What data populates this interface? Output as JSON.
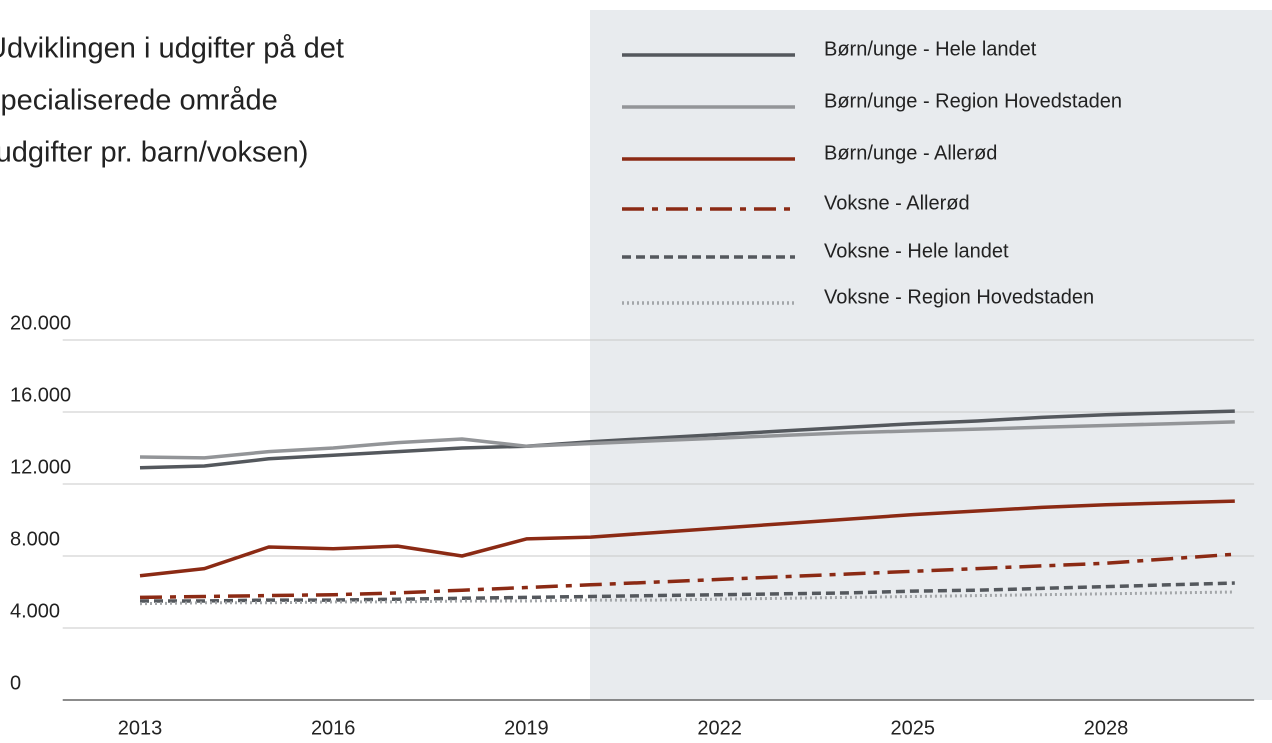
{
  "chart_data": {
    "type": "line",
    "title": [
      "Udviklingen i udgifter på det",
      "specialiserede område",
      "(udgifter pr. barn/voksen)"
    ],
    "x": [
      2013,
      2014,
      2015,
      2016,
      2017,
      2018,
      2019,
      2020,
      2021,
      2022,
      2023,
      2024,
      2025,
      2026,
      2027,
      2028,
      2029,
      2030
    ],
    "xlim": [
      2011.8,
      2030.3
    ],
    "xticks": [
      2013,
      2016,
      2019,
      2022,
      2025,
      2028
    ],
    "ylim": [
      0,
      20000
    ],
    "yticks": [
      0,
      {
        "value": 4000,
        "label": "4.000"
      },
      {
        "value": 8000,
        "label": "8.000"
      },
      {
        "value": 12000,
        "label": "12.000"
      },
      {
        "value": 16000,
        "label": "16.000"
      },
      {
        "value": 20000,
        "label": "20.000"
      }
    ],
    "grid": true,
    "series": [
      {
        "name": "Børn/unge - Hele landet",
        "color": "#54585d",
        "dash": "solid",
        "values": [
          12900,
          13000,
          13400,
          13600,
          13800,
          14000,
          14100,
          14350,
          14550,
          14750,
          14950,
          15150,
          15350,
          15500,
          15700,
          15850,
          15950,
          16050
        ]
      },
      {
        "name": "Børn/unge - Region Hovedstaden",
        "color": "#939598",
        "dash": "solid",
        "values": [
          13500,
          13450,
          13800,
          14000,
          14300,
          14500,
          14100,
          14250,
          14400,
          14550,
          14700,
          14850,
          14950,
          15050,
          15150,
          15250,
          15350,
          15450
        ]
      },
      {
        "name": "Børn/unge - Allerød",
        "color": "#8b2a14",
        "dash": "solid",
        "values": [
          6900,
          7300,
          8500,
          8400,
          8550,
          8000,
          8950,
          9050,
          9300,
          9550,
          9800,
          10050,
          10300,
          10500,
          10700,
          10850,
          10950,
          11050
        ]
      },
      {
        "name": "Voksne - Allerød",
        "color": "#8b2a14",
        "dash": "dashdot",
        "values": [
          5700,
          5750,
          5800,
          5850,
          5950,
          6100,
          6250,
          6400,
          6550,
          6700,
          6850,
          7000,
          7150,
          7300,
          7450,
          7600,
          7850,
          8100
        ]
      },
      {
        "name": "Voksne - Hele landet",
        "color": "#54585d",
        "dash": "dashed",
        "values": [
          5500,
          5500,
          5550,
          5550,
          5600,
          5650,
          5700,
          5750,
          5800,
          5850,
          5900,
          5950,
          6050,
          6100,
          6200,
          6300,
          6400,
          6500
        ]
      },
      {
        "name": "Voksne - Region Hovedstaden",
        "color": "#a3a6a9",
        "dash": "dotted",
        "values": [
          5350,
          5400,
          5400,
          5450,
          5450,
          5500,
          5500,
          5550,
          5550,
          5600,
          5650,
          5700,
          5750,
          5800,
          5850,
          5900,
          5950,
          6000
        ]
      }
    ]
  }
}
